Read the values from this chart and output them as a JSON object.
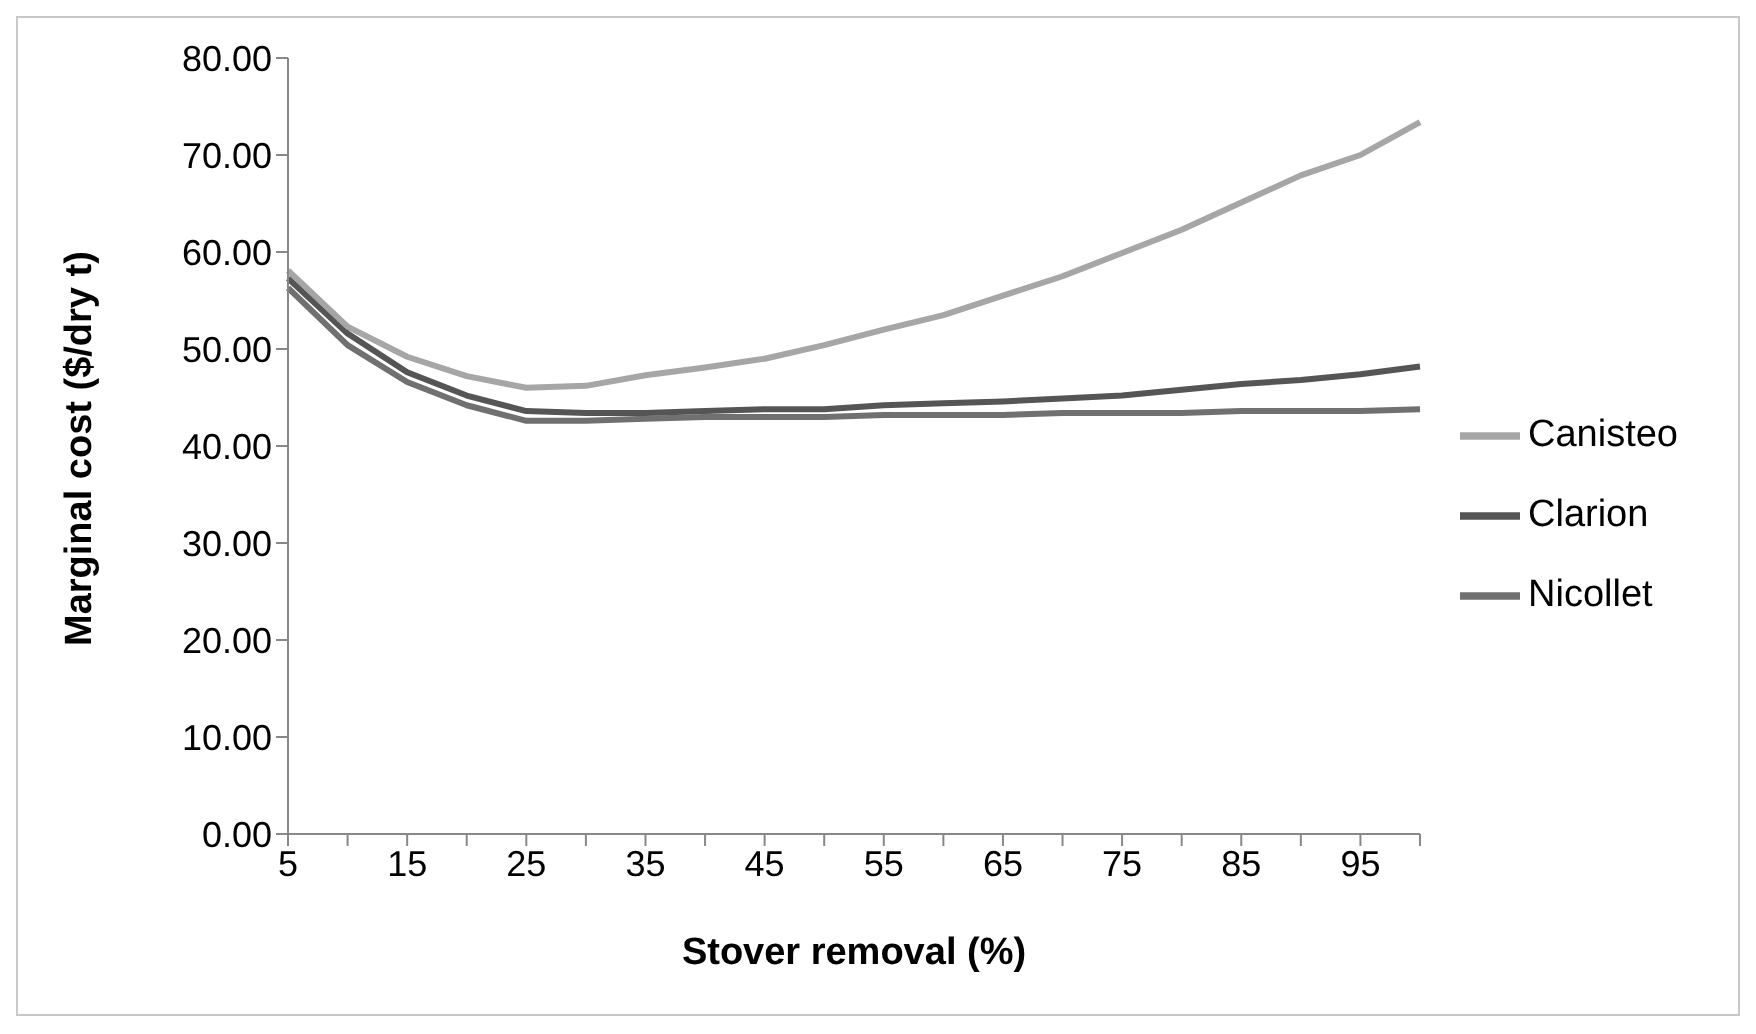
{
  "chart_data": {
    "type": "line",
    "xlabel": "Stover removal (%)",
    "ylabel": "Marginal cost ($/dry t)",
    "categories": [
      "5",
      null,
      "15",
      null,
      "25",
      null,
      "35",
      null,
      "45",
      null,
      "55",
      null,
      "65",
      null,
      "75",
      null,
      "85",
      null,
      "95",
      null
    ],
    "series": [
      {
        "name": "Nicollet",
        "color": "#707070",
        "values": [
          56.3,
          50.4,
          46.6,
          44.2,
          42.6,
          42.6,
          42.8,
          43.0,
          43.0,
          43.0,
          43.2,
          43.2,
          43.2,
          43.4,
          43.4,
          43.4,
          43.6,
          43.6,
          43.6,
          43.8
        ]
      },
      {
        "name": "Clarion",
        "color": "#555555",
        "values": [
          57.3,
          51.6,
          47.6,
          45.2,
          43.6,
          43.4,
          43.4,
          43.6,
          43.8,
          43.8,
          44.2,
          44.4,
          44.6,
          44.9,
          45.2,
          45.8,
          46.4,
          46.8,
          47.4,
          48.2
        ]
      },
      {
        "name": "Canisteo",
        "color": "#a6a6a6",
        "values": [
          58.1,
          52.3,
          49.2,
          47.2,
          46.0,
          46.2,
          47.3,
          48.1,
          49.0,
          50.4,
          52.0,
          53.5,
          55.5,
          57.5,
          59.9,
          62.3,
          65.1,
          67.9,
          70.0,
          73.4
        ]
      }
    ],
    "ylim": [
      0,
      80
    ],
    "yticks": [
      {
        "value": 0,
        "label": "0.00"
      },
      {
        "value": 10,
        "label": "10.00"
      },
      {
        "value": 20,
        "label": "20.00"
      },
      {
        "value": 30,
        "label": "30.00"
      },
      {
        "value": 40,
        "label": "40.00"
      },
      {
        "value": 50,
        "label": "50.00"
      },
      {
        "value": 60,
        "label": "60.00"
      },
      {
        "value": 70,
        "label": "70.00"
      },
      {
        "value": 80,
        "label": "80.00"
      }
    ],
    "grid": false,
    "legend": "right",
    "marker": "none",
    "line_style": "solid"
  }
}
